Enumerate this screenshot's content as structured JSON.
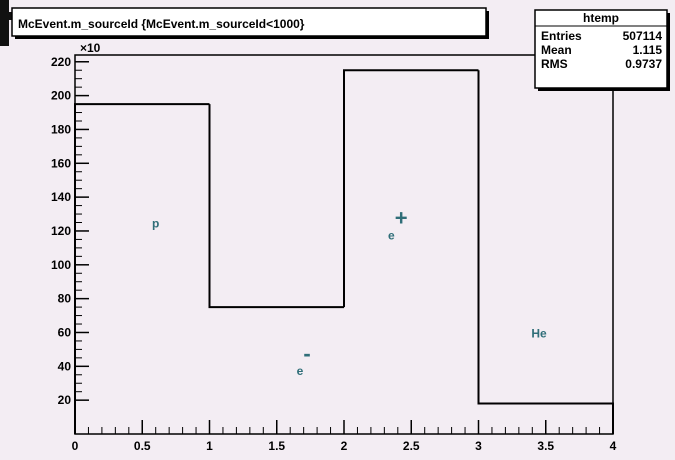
{
  "chart_data": {
    "type": "histogram",
    "title": "McEvent.m_sourceId {McEvent.m_sourceId<1000}",
    "multiplier": "×10",
    "bins": [
      0,
      1,
      2,
      3,
      4
    ],
    "counts": [
      195,
      75,
      215,
      18
    ],
    "color": "#000000",
    "xlim": [
      0,
      4
    ],
    "ylim": [
      0,
      224
    ],
    "xticks": [
      0,
      0.5,
      1,
      1.5,
      2,
      2.5,
      3,
      3.5,
      4
    ],
    "yticks": [
      20,
      40,
      60,
      80,
      100,
      120,
      140,
      160,
      180,
      200,
      220
    ],
    "stats": {
      "title": "htemp",
      "rows": [
        [
          "Entries",
          "507114"
        ],
        [
          "Mean",
          "1.115"
        ],
        [
          "RMS",
          "0.9737"
        ]
      ]
    },
    "annotations": [
      {
        "text": "p",
        "x": 0.6,
        "y": 122
      },
      {
        "text": "e",
        "sup": "-",
        "x": 1.7,
        "y": 35
      },
      {
        "text": "e",
        "sup": "+",
        "x": 2.4,
        "y": 115
      },
      {
        "text": "He",
        "x": 3.45,
        "y": 57
      }
    ],
    "annotation_color": "#2f6e78"
  }
}
